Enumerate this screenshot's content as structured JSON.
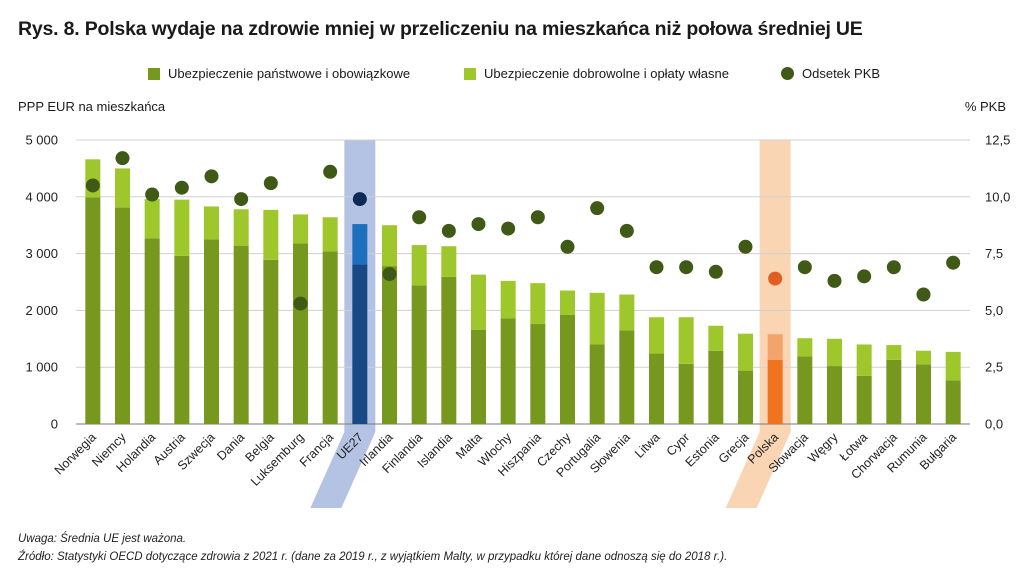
{
  "title": "Rys. 8. Polska wydaje na zdrowie mniej w przeliczeniu na mieszkańca niż połowa średniej UE",
  "legend": {
    "public": "Ubezpieczenie państwowe i obowiązkowe",
    "voluntary": "Ubezpieczenie dobrowolne i opłaty własne",
    "gdp": "Odsetek PKB"
  },
  "colors": {
    "public": "#76981f",
    "voluntary": "#9ec72c",
    "gdp": "#3f5a16",
    "eu_public": "#174a85",
    "eu_voluntary": "#1f6fc0",
    "eu_dot": "#0d2a54",
    "eu_highlight": "#b4c3e3",
    "pl_public": "#f07420",
    "pl_voluntary": "#f4a46a",
    "pl_dot": "#e35d22",
    "pl_highlight": "#fad5b4"
  },
  "chart_data": {
    "type": "bar",
    "stacked": true,
    "ylabel": "PPP EUR na mieszkańca",
    "y2label": "% PKB",
    "ylim": [
      0,
      5000
    ],
    "y2lim": [
      0,
      12.5
    ],
    "yticks": [
      "0",
      "1 000",
      "2 000",
      "3 000",
      "4 000",
      "5 000"
    ],
    "y2ticks": [
      "0,0",
      "2,5",
      "5,0",
      "7,5",
      "10,0",
      "12,5"
    ],
    "grid": true,
    "legend_position": "top-center",
    "categories": [
      "Norwegia",
      "Niemcy",
      "Holandia",
      "Austria",
      "Szwecja",
      "Dania",
      "Belgia",
      "Luksemburg",
      "Francja",
      "UE27",
      "Irlandia",
      "Finlandia",
      "Islandia",
      "Malta",
      "Włochy",
      "Hiszpania",
      "Czechy",
      "Portugalia",
      "Słowenia",
      "Litwa",
      "Cypr",
      "Estonia",
      "Grecja",
      "Polska",
      "Słowacja",
      "Węgry",
      "Łotwa",
      "Chorwacja",
      "Rumunia",
      "Bułgaria"
    ],
    "highlight": [
      "UE27",
      "Polska"
    ],
    "series": [
      {
        "name": "Ubezpieczenie państwowe i obowiązkowe",
        "type": "bar",
        "values": [
          3990,
          3810,
          3270,
          2960,
          3250,
          3140,
          2890,
          3180,
          3040,
          2810,
          2780,
          2440,
          2590,
          1660,
          1860,
          1760,
          1920,
          1400,
          1650,
          1240,
          1060,
          1290,
          940,
          1130,
          1190,
          1020,
          850,
          1130,
          1050,
          770
        ]
      },
      {
        "name": "Ubezpieczenie dobrowolne i opłaty własne",
        "type": "bar",
        "values": [
          670,
          690,
          690,
          990,
          580,
          640,
          880,
          510,
          600,
          710,
          720,
          710,
          540,
          970,
          660,
          720,
          430,
          910,
          630,
          640,
          820,
          440,
          650,
          450,
          320,
          480,
          550,
          260,
          240,
          500
        ]
      },
      {
        "name": "Odsetek PKB",
        "type": "scatter",
        "axis": "right",
        "values": [
          10.5,
          11.7,
          10.1,
          10.4,
          10.9,
          9.9,
          10.6,
          5.3,
          11.1,
          9.9,
          6.6,
          9.1,
          8.5,
          8.8,
          8.6,
          9.1,
          7.8,
          9.5,
          8.5,
          6.9,
          6.9,
          6.7,
          7.8,
          6.4,
          6.9,
          6.3,
          6.5,
          6.9,
          5.7,
          7.1
        ]
      }
    ]
  },
  "notes": {
    "note1": "Uwaga: Średnia UE jest ważona.",
    "note2": "Źródło: Statystyki OECD dotyczące zdrowia z 2021 r. (dane za 2019 r., z wyjątkiem Malty, w przypadku której dane odnoszą się do 2018 r.)."
  }
}
